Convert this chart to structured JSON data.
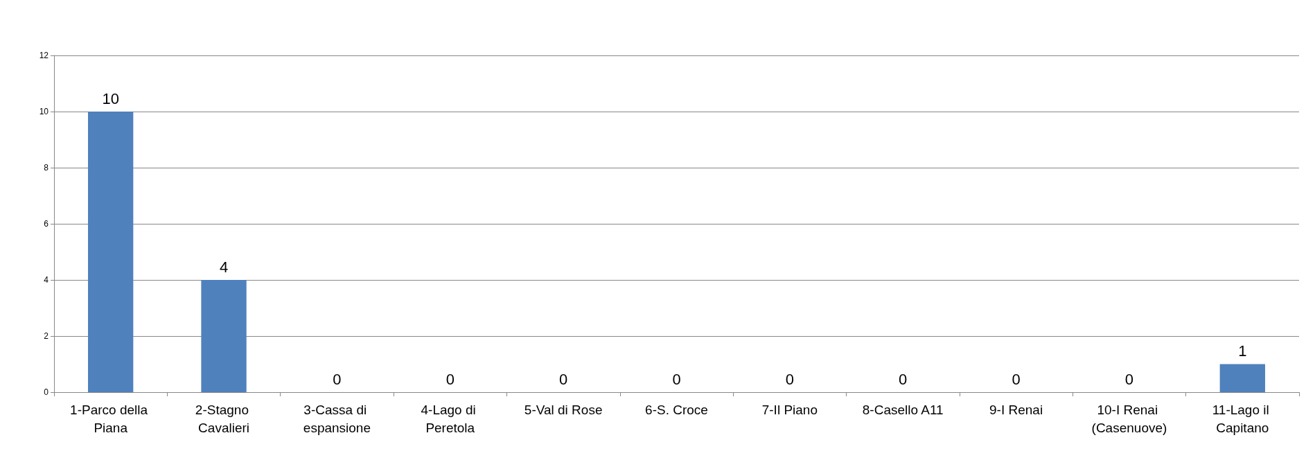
{
  "chart_data": {
    "type": "bar",
    "categories": [
      "1-Parco della Piana",
      "2-Stagno Cavalieri",
      "3-Cassa di espansione",
      "4-Lago di Peretola",
      "5-Val di Rose",
      "6-S. Croce",
      "7-Il Piano",
      "8-Casello A11",
      "9-I Renai",
      "10-I Renai (Casenuove)",
      "11-Lago il Capitano"
    ],
    "values": [
      10,
      4,
      0,
      0,
      0,
      0,
      0,
      0,
      0,
      0,
      1
    ],
    "color": "#4f81bd",
    "ylim": [
      0,
      12
    ],
    "yticks": [
      0,
      2,
      4,
      6,
      8,
      10,
      12
    ],
    "grid": "y",
    "data_labels": true
  }
}
